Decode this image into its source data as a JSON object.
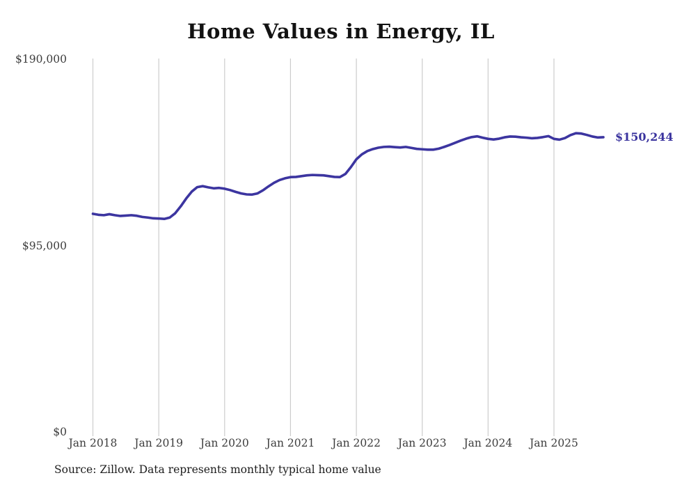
{
  "title": "Home Values in Energy, IL",
  "end_label": "$150,244",
  "source": "Source: Zillow. Data represents monthly typical home value",
  "colors": {
    "background": "#ffffff",
    "line": "#3c35a0",
    "end_label": "#3a339e",
    "grid": "#cccccc",
    "title": "#121212",
    "axis_text": "#3d3d3d",
    "source_text": "#1c1c1c"
  },
  "chart_data": {
    "type": "line",
    "title": "Home Values in Energy, IL",
    "xlabel": "",
    "ylabel": "",
    "ylim": [
      0,
      190000
    ],
    "y_ticks": [
      {
        "label": "$190,000",
        "value": 190000
      },
      {
        "label": "$95,000",
        "value": 95000
      },
      {
        "label": "$0",
        "value": 0
      }
    ],
    "x_tick_labels": [
      "Jan 2018",
      "Jan 2019",
      "Jan 2020",
      "Jan 2021",
      "Jan 2022",
      "Jan 2023",
      "Jan 2024",
      "Jan 2025"
    ],
    "grid": "vertical-only",
    "legend": "none",
    "x_start_month": "2018-01",
    "x_end_month": "2025-10",
    "series": [
      {
        "name": "Monthly typical home value",
        "final_value": 150244,
        "monthly_values": [
          111200,
          110700,
          110500,
          111000,
          110500,
          110100,
          110300,
          110500,
          110200,
          109600,
          109300,
          108900,
          108800,
          108600,
          109300,
          111500,
          115000,
          119000,
          122500,
          124800,
          125300,
          124700,
          124200,
          124400,
          124000,
          123300,
          122400,
          121600,
          121100,
          121000,
          121600,
          123200,
          125200,
          127000,
          128400,
          129300,
          129900,
          130000,
          130400,
          130800,
          131000,
          130900,
          130800,
          130400,
          130000,
          129900,
          131500,
          135000,
          139000,
          141500,
          143200,
          144200,
          144900,
          145300,
          145400,
          145200,
          145000,
          145300,
          144800,
          144300,
          144100,
          143900,
          143900,
          144400,
          145300,
          146300,
          147400,
          148500,
          149500,
          150300,
          150700,
          150000,
          149400,
          149100,
          149500,
          150200,
          150600,
          150500,
          150200,
          150000,
          149700,
          149900,
          150300,
          150800,
          149400,
          149000,
          149800,
          151300,
          152300,
          152100,
          151400,
          150600,
          150100,
          150244
        ]
      }
    ]
  }
}
